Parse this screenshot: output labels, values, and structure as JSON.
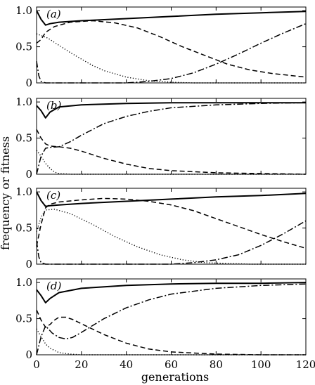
{
  "chart_data": {
    "type": "line",
    "xlabel": "generations",
    "ylabel": "frequency or fitness",
    "xlim": [
      0,
      120
    ],
    "ylim": [
      0,
      1.05
    ],
    "x_ticks": [
      0,
      20,
      40,
      60,
      80,
      100,
      120
    ],
    "y_ticks": [
      1.0,
      0.5,
      0
    ],
    "y_tick_labels": [
      "1.0",
      "0.5",
      "0"
    ],
    "grid": false,
    "legend": "none",
    "panels": [
      {
        "label": "(a)",
        "series": [
          {
            "style": "solid",
            "points": [
              [
                0,
                1.0
              ],
              [
                2,
                0.88
              ],
              [
                4,
                0.8
              ],
              [
                6,
                0.82
              ],
              [
                10,
                0.84
              ],
              [
                20,
                0.86
              ],
              [
                40,
                0.89
              ],
              [
                60,
                0.92
              ],
              [
                80,
                0.95
              ],
              [
                100,
                0.97
              ],
              [
                120,
                0.99
              ]
            ]
          },
          {
            "style": "dashed",
            "points": [
              [
                0,
                0.55
              ],
              [
                2,
                0.6
              ],
              [
                4,
                0.7
              ],
              [
                8,
                0.78
              ],
              [
                15,
                0.84
              ],
              [
                25,
                0.86
              ],
              [
                35,
                0.83
              ],
              [
                45,
                0.76
              ],
              [
                55,
                0.64
              ],
              [
                65,
                0.5
              ],
              [
                75,
                0.38
              ],
              [
                85,
                0.26
              ],
              [
                95,
                0.18
              ],
              [
                105,
                0.13
              ],
              [
                120,
                0.08
              ]
            ]
          },
          {
            "style": "dotted",
            "points": [
              [
                0,
                0.68
              ],
              [
                5,
                0.62
              ],
              [
                10,
                0.52
              ],
              [
                15,
                0.42
              ],
              [
                20,
                0.33
              ],
              [
                25,
                0.24
              ],
              [
                30,
                0.17
              ],
              [
                40,
                0.08
              ],
              [
                50,
                0.03
              ],
              [
                60,
                0.01
              ],
              [
                70,
                0.0
              ],
              [
                120,
                0.0
              ]
            ]
          },
          {
            "style": "dashdot",
            "points": [
              [
                0,
                0.3
              ],
              [
                1,
                0.1
              ],
              [
                2,
                0.02
              ],
              [
                4,
                0.0
              ],
              [
                40,
                0.0
              ],
              [
                50,
                0.02
              ],
              [
                60,
                0.06
              ],
              [
                70,
                0.14
              ],
              [
                80,
                0.26
              ],
              [
                90,
                0.4
              ],
              [
                100,
                0.55
              ],
              [
                110,
                0.69
              ],
              [
                120,
                0.82
              ]
            ]
          }
        ]
      },
      {
        "label": "(b)",
        "series": [
          {
            "style": "solid",
            "points": [
              [
                0,
                0.95
              ],
              [
                2,
                0.88
              ],
              [
                4,
                0.78
              ],
              [
                6,
                0.86
              ],
              [
                10,
                0.93
              ],
              [
                20,
                0.96
              ],
              [
                40,
                0.98
              ],
              [
                60,
                0.99
              ],
              [
                80,
                0.99
              ],
              [
                100,
                0.99
              ],
              [
                120,
                0.99
              ]
            ]
          },
          {
            "style": "dashed",
            "points": [
              [
                0,
                0.62
              ],
              [
                2,
                0.5
              ],
              [
                4,
                0.42
              ],
              [
                6,
                0.39
              ],
              [
                10,
                0.38
              ],
              [
                15,
                0.36
              ],
              [
                20,
                0.32
              ],
              [
                30,
                0.22
              ],
              [
                40,
                0.14
              ],
              [
                50,
                0.08
              ],
              [
                60,
                0.05
              ],
              [
                80,
                0.02
              ],
              [
                100,
                0.01
              ],
              [
                120,
                0.0
              ]
            ]
          },
          {
            "style": "dotted",
            "points": [
              [
                0,
                0.33
              ],
              [
                2,
                0.25
              ],
              [
                4,
                0.15
              ],
              [
                6,
                0.08
              ],
              [
                8,
                0.03
              ],
              [
                10,
                0.01
              ],
              [
                15,
                0.0
              ],
              [
                120,
                0.0
              ]
            ]
          },
          {
            "style": "dashdot",
            "points": [
              [
                0,
                0.0
              ],
              [
                2,
                0.25
              ],
              [
                4,
                0.36
              ],
              [
                6,
                0.37
              ],
              [
                10,
                0.38
              ],
              [
                15,
                0.45
              ],
              [
                20,
                0.54
              ],
              [
                30,
                0.7
              ],
              [
                40,
                0.8
              ],
              [
                50,
                0.87
              ],
              [
                60,
                0.92
              ],
              [
                80,
                0.96
              ],
              [
                100,
                0.98
              ],
              [
                120,
                0.99
              ]
            ]
          }
        ]
      },
      {
        "label": "(c)",
        "series": [
          {
            "style": "solid",
            "points": [
              [
                0,
                1.0
              ],
              [
                2,
                0.88
              ],
              [
                4,
                0.8
              ],
              [
                6,
                0.81
              ],
              [
                10,
                0.82
              ],
              [
                20,
                0.84
              ],
              [
                40,
                0.87
              ],
              [
                60,
                0.9
              ],
              [
                80,
                0.93
              ],
              [
                100,
                0.95
              ],
              [
                120,
                0.98
              ]
            ]
          },
          {
            "style": "dashed",
            "points": [
              [
                0,
                0.25
              ],
              [
                2,
                0.55
              ],
              [
                4,
                0.78
              ],
              [
                6,
                0.83
              ],
              [
                10,
                0.86
              ],
              [
                20,
                0.89
              ],
              [
                30,
                0.91
              ],
              [
                40,
                0.9
              ],
              [
                50,
                0.87
              ],
              [
                60,
                0.82
              ],
              [
                70,
                0.74
              ],
              [
                80,
                0.63
              ],
              [
                90,
                0.52
              ],
              [
                100,
                0.41
              ],
              [
                110,
                0.31
              ],
              [
                120,
                0.22
              ]
            ]
          },
          {
            "style": "dotted",
            "points": [
              [
                0,
                0.45
              ],
              [
                2,
                0.65
              ],
              [
                4,
                0.75
              ],
              [
                8,
                0.76
              ],
              [
                15,
                0.7
              ],
              [
                25,
                0.55
              ],
              [
                35,
                0.38
              ],
              [
                45,
                0.24
              ],
              [
                55,
                0.13
              ],
              [
                65,
                0.06
              ],
              [
                75,
                0.02
              ],
              [
                85,
                0.01
              ],
              [
                95,
                0.0
              ],
              [
                120,
                0.0
              ]
            ]
          },
          {
            "style": "dashdot",
            "points": [
              [
                0,
                0.32
              ],
              [
                1,
                0.1
              ],
              [
                2,
                0.02
              ],
              [
                4,
                0.0
              ],
              [
                60,
                0.0
              ],
              [
                70,
                0.02
              ],
              [
                80,
                0.06
              ],
              [
                90,
                0.13
              ],
              [
                100,
                0.26
              ],
              [
                110,
                0.42
              ],
              [
                120,
                0.6
              ]
            ]
          }
        ]
      },
      {
        "label": "(d)",
        "series": [
          {
            "style": "solid",
            "points": [
              [
                0,
                0.9
              ],
              [
                2,
                0.82
              ],
              [
                4,
                0.72
              ],
              [
                6,
                0.78
              ],
              [
                10,
                0.86
              ],
              [
                20,
                0.92
              ],
              [
                40,
                0.96
              ],
              [
                60,
                0.98
              ],
              [
                80,
                0.99
              ],
              [
                100,
                0.99
              ],
              [
                120,
                1.0
              ]
            ]
          },
          {
            "style": "dashed",
            "points": [
              [
                0,
                0.62
              ],
              [
                2,
                0.48
              ],
              [
                4,
                0.38
              ],
              [
                6,
                0.42
              ],
              [
                8,
                0.48
              ],
              [
                10,
                0.52
              ],
              [
                13,
                0.52
              ],
              [
                16,
                0.49
              ],
              [
                20,
                0.43
              ],
              [
                30,
                0.28
              ],
              [
                40,
                0.16
              ],
              [
                50,
                0.08
              ],
              [
                60,
                0.04
              ],
              [
                80,
                0.01
              ],
              [
                100,
                0.0
              ],
              [
                120,
                0.0
              ]
            ]
          },
          {
            "style": "dotted",
            "points": [
              [
                0,
                0.36
              ],
              [
                2,
                0.25
              ],
              [
                4,
                0.15
              ],
              [
                6,
                0.09
              ],
              [
                10,
                0.03
              ],
              [
                15,
                0.01
              ],
              [
                20,
                0.0
              ],
              [
                120,
                0.0
              ]
            ]
          },
          {
            "style": "dashdot",
            "points": [
              [
                0,
                0.0
              ],
              [
                2,
                0.25
              ],
              [
                4,
                0.4
              ],
              [
                7,
                0.3
              ],
              [
                10,
                0.24
              ],
              [
                13,
                0.22
              ],
              [
                16,
                0.24
              ],
              [
                20,
                0.31
              ],
              [
                30,
                0.5
              ],
              [
                40,
                0.65
              ],
              [
                50,
                0.76
              ],
              [
                60,
                0.84
              ],
              [
                80,
                0.92
              ],
              [
                100,
                0.96
              ],
              [
                120,
                0.98
              ]
            ]
          }
        ]
      }
    ]
  }
}
